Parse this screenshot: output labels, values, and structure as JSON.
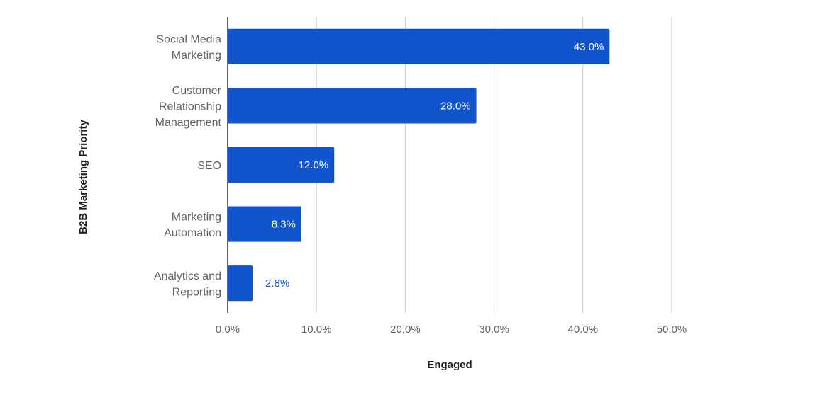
{
  "chart_data": {
    "type": "bar",
    "orientation": "horizontal",
    "categories": [
      [
        "Social Media",
        "Marketing"
      ],
      [
        "Customer",
        "Relationship",
        "Management"
      ],
      [
        "SEO"
      ],
      [
        "Marketing",
        "Automation"
      ],
      [
        "Analytics and",
        "Reporting"
      ]
    ],
    "values": [
      43.0,
      28.0,
      12.0,
      8.3,
      2.8
    ],
    "value_labels": [
      "43.0%",
      "28.0%",
      "12.0%",
      "8.3%",
      "2.8%"
    ],
    "xlabel": "Engaged",
    "ylabel": "B2B Marketing Priority",
    "xlim": [
      0,
      50
    ],
    "x_ticks": [
      0,
      10,
      20,
      30,
      40,
      50
    ],
    "x_tick_labels": [
      "0.0%",
      "10.0%",
      "20.0%",
      "30.0%",
      "40.0%",
      "50.0%"
    ],
    "grid": true,
    "legend": "none",
    "colors": {
      "bar": "#1155cc",
      "label_inside": "#ffffff",
      "label_outside": "#1155cc",
      "grid": "#cccccc",
      "axis": "#333333"
    }
  }
}
